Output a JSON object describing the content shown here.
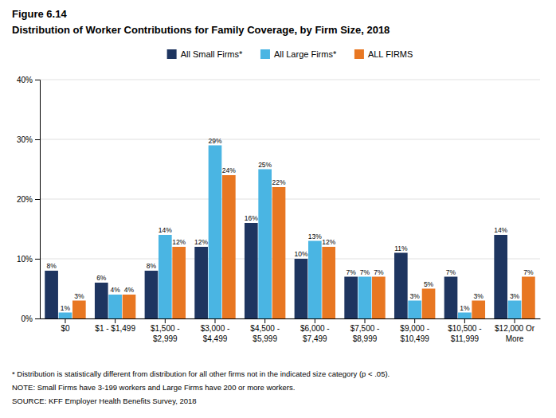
{
  "chart_data": {
    "type": "bar",
    "figure_label": "Figure 6.14",
    "title": "Distribution of Worker Contributions for Family Coverage, by Firm Size, 2018",
    "categories": [
      "$0",
      "$1 - $1,499",
      "$1,500 -\n$2,999",
      "$3,000 -\n$4,499",
      "$4,500 -\n$5,999",
      "$6,000 -\n$7,499",
      "$7,500 -\n$8,999",
      "$9,000 -\n$10,499",
      "$10,500 -\n$11,999",
      "$12,000 Or\nMore"
    ],
    "series": [
      {
        "name": "All Small Firms*",
        "color": "#1e3560",
        "values": [
          8,
          6,
          8,
          12,
          16,
          10,
          7,
          11,
          7,
          14
        ],
        "value_labels": [
          "8%",
          "6%",
          "8%",
          "12%",
          "16%",
          "10%",
          "7%",
          "11%",
          "7%",
          "14%"
        ]
      },
      {
        "name": "All Large Firms*",
        "color": "#4ab5e3",
        "values": [
          1,
          4,
          14,
          29,
          25,
          13,
          7,
          3,
          1,
          3
        ],
        "value_labels": [
          "1%",
          "4%",
          "14%",
          "29%",
          "25%",
          "13%",
          "7%",
          "3%",
          "1%",
          "3%"
        ]
      },
      {
        "name": "ALL FIRMS",
        "color": "#e87722",
        "values": [
          3,
          4,
          12,
          24,
          22,
          12,
          7,
          5,
          3,
          7
        ],
        "value_labels": [
          "3%",
          "4%",
          "12%",
          "24%",
          "22%",
          "12%",
          "7%",
          "5%",
          "3%",
          "7%"
        ]
      }
    ],
    "ylim": [
      0,
      40
    ],
    "yticks": [
      {
        "value": 0,
        "label": "0%"
      },
      {
        "value": 10,
        "label": "10%"
      },
      {
        "value": 20,
        "label": "20%"
      },
      {
        "value": 30,
        "label": "30%"
      },
      {
        "value": 40,
        "label": "40%"
      }
    ],
    "grid": true,
    "legend": "top",
    "data_labels": true,
    "annotations": [
      "* Distribution is statistically different from distribution for all other firms not in the indicated size category (p < .05).",
      "NOTE: Small Firms have 3-199 workers and Large Firms have 200 or more workers.",
      "SOURCE: KFF Employer Health Benefits Survey, 2018"
    ]
  }
}
